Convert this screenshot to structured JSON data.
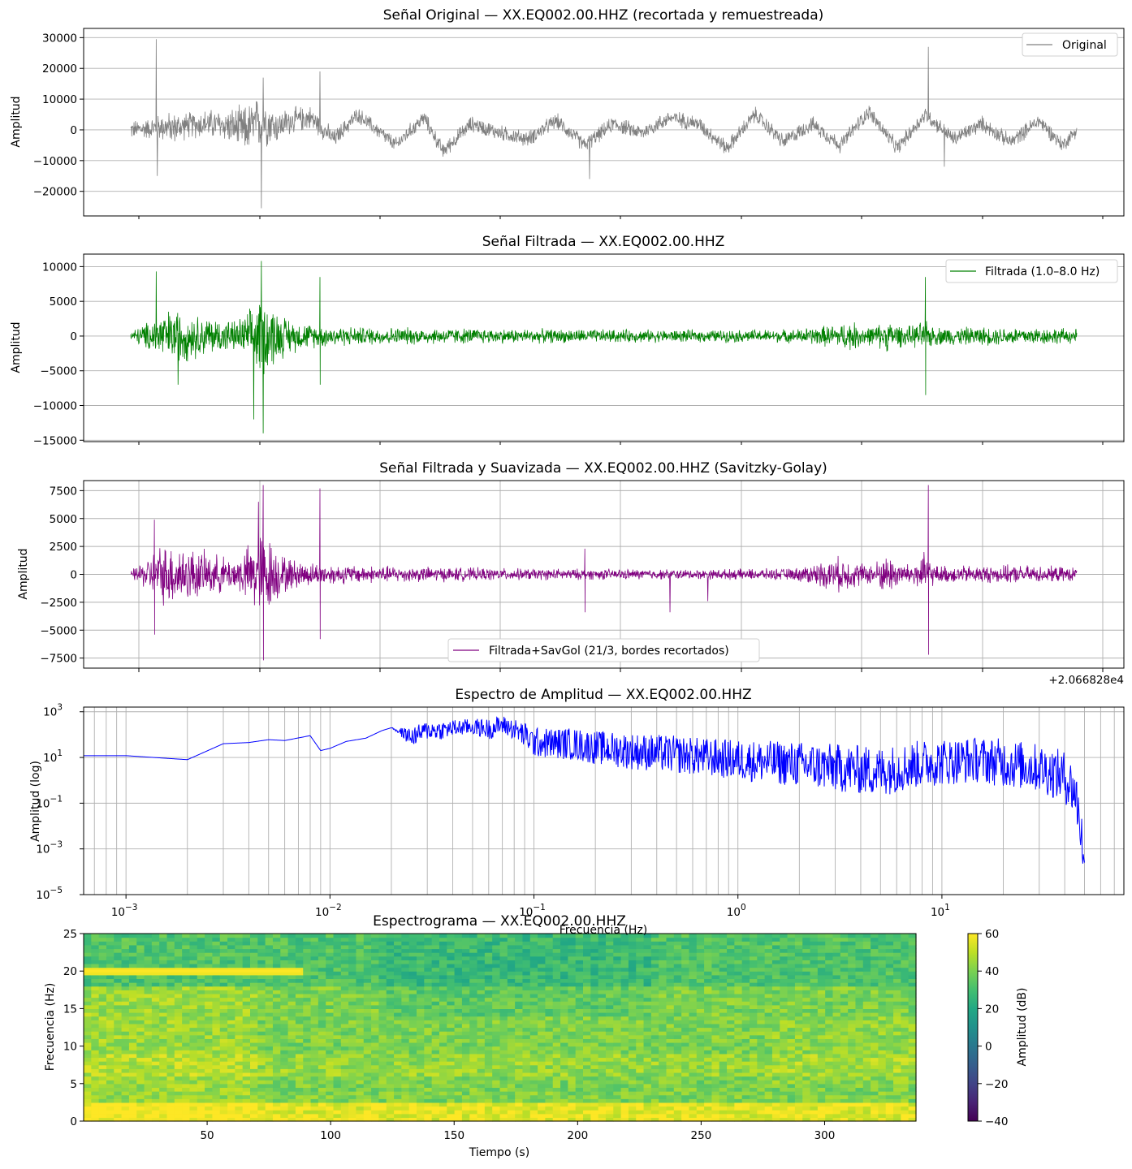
{
  "chart_data": [
    {
      "type": "line",
      "title": "Señal Original — XX.EQ002.00.HHZ (recortada y remuestreada)",
      "xlabel": "",
      "ylabel": "Amplitud",
      "ylim": [
        -28000,
        33000
      ],
      "yticks": [
        30000,
        20000,
        10000,
        0,
        -10000,
        -20000
      ],
      "ytick_labels": [
        "30000",
        "20000",
        "10000",
        "0",
        "−10000",
        "−20000"
      ],
      "grid": true,
      "legend": "top-right",
      "color": "#808080",
      "series": [
        {
          "name": "Original",
          "envelope": {
            "t": [
              0,
              0.02,
              0.035,
              0.045,
              0.06,
              0.08,
              0.1,
              0.12,
              0.14,
              0.155,
              0.17,
              0.19,
              0.215,
              0.24,
              0.26,
              0.28,
              0.31,
              0.33,
              0.36,
              0.39,
              0.42,
              0.45,
              0.48,
              0.51,
              0.54,
              0.57,
              0.6,
              0.63,
              0.66,
              0.69,
              0.72,
              0.75,
              0.78,
              0.81,
              0.84,
              0.87,
              0.9,
              0.93,
              0.96,
              0.985,
              1
            ],
            "center": [
              0,
              500,
              1000,
              500,
              1500,
              2000,
              1500,
              0,
              3000,
              1000,
              3000,
              4000,
              -3000,
              5000,
              0,
              -5000,
              4000,
              -7000,
              2000,
              -1000,
              -3000,
              3000,
              -5000,
              2000,
              -1000,
              4000,
              2000,
              -6000,
              5000,
              -4000,
              2000,
              -5000,
              6000,
              -6000,
              5000,
              -3000,
              2000,
              -4000,
              3000,
              -5000,
              0
            ],
            "halfwidth": [
              3500,
              4000,
              5500,
              6000,
              5000,
              5500,
              6000,
              9000,
              10000,
              6000,
              5000,
              4500,
              3500,
              3000,
              3000,
              3000,
              3000,
              3000,
              3000,
              3000,
              3000,
              3000,
              3000,
              3000,
              3000,
              3000,
              3000,
              3000,
              3000,
              3000,
              3000,
              3000,
              3000,
              3000,
              3000,
              3000,
              3000,
              3000,
              3000,
              3000,
              2500
            ]
          },
          "spikes": [
            [
              0.027,
              29500
            ],
            [
              0.028,
              -15000
            ],
            [
              0.14,
              17000
            ],
            [
              0.138,
              -25500
            ],
            [
              0.2,
              19000
            ],
            [
              0.485,
              -16000
            ],
            [
              0.843,
              27000
            ],
            [
              0.86,
              -12000
            ]
          ]
        }
      ]
    },
    {
      "type": "line",
      "title": "Señal Filtrada — XX.EQ002.00.HHZ",
      "xlabel": "",
      "ylabel": "Amplitud",
      "ylim": [
        -15200,
        11800
      ],
      "yticks": [
        10000,
        5000,
        0,
        -5000,
        -10000,
        -15000
      ],
      "ytick_labels": [
        "10000",
        "5000",
        "0",
        "−5000",
        "−10000",
        "−15000"
      ],
      "grid": true,
      "legend": "top-right",
      "color": "#008000",
      "series": [
        {
          "name": "Filtrada (1.0–8.0 Hz)",
          "envelope": {
            "t": [
              0,
              0.02,
              0.03,
              0.05,
              0.07,
              0.09,
              0.11,
              0.125,
              0.135,
              0.145,
              0.16,
              0.18,
              0.2,
              0.24,
              0.3,
              0.35,
              0.4,
              0.5,
              0.6,
              0.7,
              0.75,
              0.76,
              0.78,
              0.8,
              0.82,
              0.84,
              0.85,
              0.9,
              0.95,
              1
            ],
            "halfwidth": [
              800,
              2500,
              4000,
              4500,
              3500,
              3000,
              2500,
              4000,
              6500,
              6000,
              3500,
              2200,
              1800,
              1500,
              1400,
              1300,
              1200,
              1100,
              1000,
              1100,
              2000,
              2500,
              1500,
              2500,
              1500,
              2500,
              1500,
              1500,
              1500,
              1200
            ]
          },
          "spikes": [
            [
              0.027,
              9300
            ],
            [
              0.05,
              -7000
            ],
            [
              0.13,
              -12000
            ],
            [
              0.138,
              10800
            ],
            [
              0.14,
              -14000
            ],
            [
              0.2,
              8500
            ],
            [
              0.2,
              -7000
            ],
            [
              0.84,
              8500
            ],
            [
              0.84,
              -8500
            ]
          ]
        }
      ]
    },
    {
      "type": "line",
      "title": "Señal Filtrada y Suavizada — XX.EQ002.00.HHZ (Savitzky-Golay)",
      "xlabel": "",
      "ylabel": "Amplitud",
      "ylim": [
        -8400,
        8400
      ],
      "yticks": [
        7500,
        5000,
        2500,
        0,
        -2500,
        -5000,
        -7500
      ],
      "ytick_labels": [
        "7500",
        "5000",
        "2500",
        "0",
        "−2500",
        "−5000",
        "−7500"
      ],
      "x_offset_label": "+2.066828e4",
      "grid": true,
      "legend": "lower-center",
      "color": "#800080",
      "series": [
        {
          "name": "Filtrada+SavGol (21/3, bordes recortados)",
          "envelope": {
            "t": [
              0,
              0.02,
              0.03,
              0.05,
              0.07,
              0.09,
              0.11,
              0.125,
              0.135,
              0.145,
              0.16,
              0.18,
              0.2,
              0.24,
              0.3,
              0.35,
              0.4,
              0.5,
              0.6,
              0.7,
              0.75,
              0.76,
              0.78,
              0.8,
              0.82,
              0.84,
              0.85,
              0.9,
              0.95,
              1
            ],
            "halfwidth": [
              400,
              1800,
              3000,
              3200,
              2500,
              2000,
              1600,
              3000,
              4500,
              4000,
              2000,
              1300,
              1100,
              900,
              800,
              700,
              600,
              550,
              500,
              600,
              1800,
              1500,
              1000,
              2000,
              1000,
              2200,
              900,
              900,
              900,
              700
            ]
          },
          "spikes": [
            [
              0.025,
              4900
            ],
            [
              0.025,
              -5400
            ],
            [
              0.135,
              6500
            ],
            [
              0.14,
              8000
            ],
            [
              0.14,
              -7700
            ],
            [
              0.2,
              7700
            ],
            [
              0.2,
              -5800
            ],
            [
              0.843,
              8000
            ],
            [
              0.843,
              -7200
            ],
            [
              0.48,
              2300
            ],
            [
              0.48,
              -3400
            ],
            [
              0.57,
              -3400
            ],
            [
              0.61,
              -2400
            ]
          ]
        }
      ]
    },
    {
      "type": "line",
      "title": "Espectro de Amplitud — XX.EQ002.00.HHZ",
      "xlabel": "Frecuencia (Hz)",
      "ylabel": "Amplitud (log)",
      "xscale": "log",
      "yscale": "log",
      "xlim": [
        0.00062,
        78
      ],
      "ylim": [
        1e-05,
        1600
      ],
      "xticks": [
        0.001,
        0.01,
        0.1,
        1,
        10
      ],
      "xtick_bases": [
        "10",
        "10",
        "10",
        "10",
        "10"
      ],
      "xtick_exps": [
        "−3",
        "−2",
        "−1",
        "0",
        "1"
      ],
      "yticks": [
        1000,
        10,
        0.1,
        0.001,
        1e-05
      ],
      "ytick_bases": [
        "10",
        "10",
        "10",
        "10",
        "10"
      ],
      "ytick_exps": [
        "3",
        "1",
        "−1",
        "−3",
        "−5"
      ],
      "grid": true,
      "color": "#0000ff",
      "series": [
        {
          "name": "",
          "x": [
            0.00062,
            0.001,
            0.002,
            0.003,
            0.004,
            0.005,
            0.006,
            0.008,
            0.009,
            0.01,
            0.012,
            0.015,
            0.018,
            0.02,
            0.025,
            0.03,
            0.035,
            0.04,
            0.05,
            0.06,
            0.07,
            0.08,
            0.09,
            0.1,
            0.15,
            0.2,
            0.3,
            0.5,
            0.7,
            1,
            2,
            3,
            5,
            8,
            10,
            15,
            20,
            30,
            40,
            45,
            48,
            50
          ],
          "y": [
            12,
            12,
            8,
            40,
            45,
            60,
            55,
            90,
            20,
            25,
            50,
            70,
            150,
            200,
            100,
            300,
            250,
            350,
            400,
            300,
            600,
            400,
            200,
            80,
            90,
            70,
            60,
            50,
            40,
            30,
            20,
            15,
            5,
            20,
            25,
            30,
            25,
            15,
            5,
            0.5,
            0.01,
            3e-05
          ],
          "band_lo": [
            12,
            12,
            8,
            40,
            45,
            60,
            55,
            90,
            20,
            25,
            50,
            70,
            150,
            200,
            30,
            60,
            60,
            80,
            100,
            60,
            100,
            60,
            25,
            10,
            8,
            5,
            3,
            2,
            1.5,
            1,
            0.5,
            0.3,
            0.2,
            0.5,
            0.6,
            0.8,
            0.5,
            0.3,
            0.1,
            0.02,
            0.0005,
            2e-05
          ],
          "band_hi": [
            12,
            12,
            8,
            40,
            45,
            60,
            55,
            90,
            20,
            25,
            50,
            70,
            150,
            200,
            200,
            400,
            400,
            450,
            500,
            500,
            700,
            500,
            350,
            200,
            200,
            150,
            120,
            90,
            70,
            60,
            50,
            40,
            30,
            60,
            70,
            80,
            70,
            40,
            20,
            5,
            0.2,
            0.0005
          ]
        }
      ]
    },
    {
      "type": "heatmap",
      "title": "Espectrograma — XX.EQ002.00.HHZ",
      "xlabel": "Tiempo (s)",
      "ylabel": "Frecuencia (Hz)",
      "xlim": [
        0,
        337
      ],
      "ylim": [
        0,
        25
      ],
      "xticks": [
        50,
        100,
        150,
        200,
        250,
        300
      ],
      "yticks": [
        0,
        5,
        10,
        15,
        20,
        25
      ],
      "colormap": "viridis",
      "colorbar": {
        "label": "Amplitud (dB)",
        "range": [
          -40,
          60
        ],
        "ticks": [
          60,
          40,
          20,
          0,
          -20,
          -40
        ],
        "tick_labels": [
          "60",
          "40",
          "20",
          "0",
          "−20",
          "−40"
        ]
      },
      "features": {
        "tone_line": {
          "freq": 20,
          "t_end": 88
        },
        "strong_low_freq_below": 2.5
      }
    }
  ]
}
